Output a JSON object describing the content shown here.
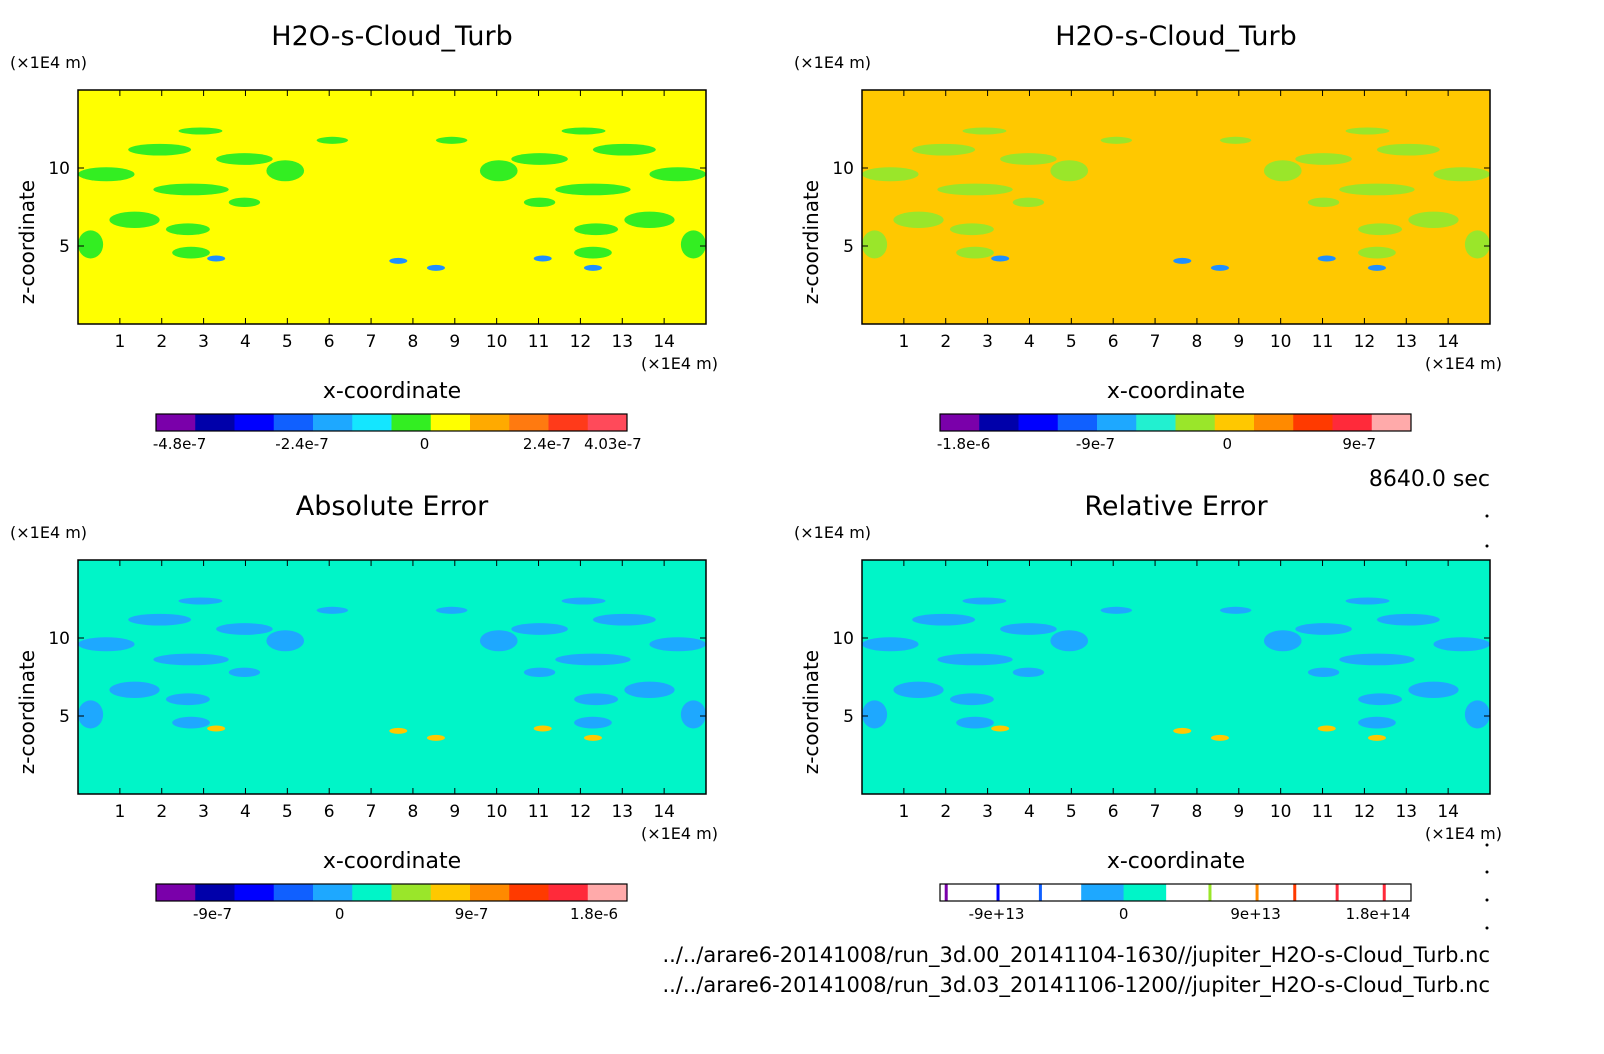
{
  "panels": [
    {
      "title": "H2O-s-Cloud_Turb",
      "bg": "#ffff00",
      "blob_color": "#33ee22",
      "spot_color": "#1f8fff",
      "unit_y": "(×1E4 m)",
      "unit_x": "(×1E4 m)",
      "xlabel": "x-coordinate",
      "ylabel": "z-coordinate",
      "x_ticks": [
        "1",
        "2",
        "3",
        "4",
        "5",
        "6",
        "7",
        "8",
        "9",
        "10",
        "11",
        "12",
        "13",
        "14"
      ],
      "y_ticks": [
        "5",
        "10"
      ],
      "colorbar": {
        "colors": [
          "#7a00aa",
          "#0000aa",
          "#0000ff",
          "#1060ff",
          "#1ea8ff",
          "#14e6ff",
          "#33ee22",
          "#ffff00",
          "#ffaa00",
          "#ff7a10",
          "#ff3a1a",
          "#ff4a5a"
        ],
        "labels": [
          "-4.8e-7",
          "-2.4e-7",
          "0",
          "2.4e-7",
          "4.03e-7"
        ],
        "style": "filled"
      }
    },
    {
      "title": "H2O-s-Cloud_Turb",
      "bg": "#ffc800",
      "blob_color": "#9ae62a",
      "spot_color": "#1f8fff",
      "unit_y": "(×1E4 m)",
      "unit_x": "(×1E4 m)",
      "xlabel": "x-coordinate",
      "ylabel": "z-coordinate",
      "x_ticks": [
        "1",
        "2",
        "3",
        "4",
        "5",
        "6",
        "7",
        "8",
        "9",
        "10",
        "11",
        "12",
        "13",
        "14"
      ],
      "y_ticks": [
        "5",
        "10"
      ],
      "colorbar": {
        "colors": [
          "#7a00aa",
          "#0000aa",
          "#0000ff",
          "#1060ff",
          "#1ea8ff",
          "#22f0d0",
          "#9ae62a",
          "#ffc800",
          "#ff8a00",
          "#ff3a00",
          "#ff2a3a",
          "#ffaaaa"
        ],
        "labels": [
          "-1.8e-6",
          "-9e-7",
          "0",
          "9e-7"
        ],
        "style": "filled"
      }
    },
    {
      "title": "Absolute Error",
      "bg": "#00f5c8",
      "blob_color": "#1ea8ff",
      "spot_color": "#ffc800",
      "unit_y": "(×1E4 m)",
      "unit_x": "(×1E4 m)",
      "xlabel": "x-coordinate",
      "ylabel": "z-coordinate",
      "x_ticks": [
        "1",
        "2",
        "3",
        "4",
        "5",
        "6",
        "7",
        "8",
        "9",
        "10",
        "11",
        "12",
        "13",
        "14"
      ],
      "y_ticks": [
        "5",
        "10"
      ],
      "colorbar": {
        "colors": [
          "#7a00aa",
          "#0000aa",
          "#0000ff",
          "#1060ff",
          "#1ea8ff",
          "#00f5c8",
          "#9ae62a",
          "#ffc800",
          "#ff8a00",
          "#ff3a00",
          "#ff2a3a",
          "#ffaaaa"
        ],
        "labels": [
          "-9e-7",
          "0",
          "9e-7",
          "1.8e-6"
        ],
        "style": "filled"
      }
    },
    {
      "title": "Relative Error",
      "bg": "#00f5c8",
      "blob_color": "#1ea8ff",
      "spot_color": "#ffc800",
      "unit_y": "(×1E4 m)",
      "unit_x": "(×1E4 m)",
      "xlabel": "x-coordinate",
      "ylabel": "z-coordinate",
      "x_ticks": [
        "1",
        "2",
        "3",
        "4",
        "5",
        "6",
        "7",
        "8",
        "9",
        "10",
        "11",
        "12",
        "13",
        "14"
      ],
      "y_ticks": [
        "5",
        "10"
      ],
      "colorbar": {
        "colors": [
          "#7a00aa",
          "#0000ff",
          "#1060ff",
          "#1ea8ff",
          "#00f5c8",
          "#9ae62a",
          "#ff8a00",
          "#ff3a00",
          "#ff2a3a",
          "#ff2a3a"
        ],
        "labels": [
          "-9e+13",
          "0",
          "9e+13",
          "1.8e+14"
        ],
        "style": "lines"
      }
    }
  ],
  "time_label": "8640.0 sec",
  "footer": {
    "line1": "../../arare6-20141008/run_3d.00_20141104-1630//jupiter_H2O-s-Cloud_Turb.nc",
    "line2": "../../arare6-20141008/run_3d.03_20141106-1200//jupiter_H2O-s-Cloud_Turb.nc"
  },
  "chart_data": [
    {
      "type": "heatmap",
      "title": "H2O-s-Cloud_Turb",
      "xlabel": "x-coordinate",
      "ylabel": "z-coordinate",
      "x_unit": "(×1E4 m)",
      "y_unit": "(×1E4 m)",
      "xlim": [
        0,
        15
      ],
      "ylim": [
        0,
        15
      ],
      "x_ticks": [
        1,
        2,
        3,
        4,
        5,
        6,
        7,
        8,
        9,
        10,
        11,
        12,
        13,
        14
      ],
      "y_ticks": [
        5,
        10
      ],
      "colorbar_labels": [
        "-4.8e-7",
        "-2.4e-7",
        "0",
        "2.4e-7",
        "4.03e-7"
      ]
    },
    {
      "type": "heatmap",
      "title": "H2O-s-Cloud_Turb",
      "xlabel": "x-coordinate",
      "ylabel": "z-coordinate",
      "x_unit": "(×1E4 m)",
      "y_unit": "(×1E4 m)",
      "xlim": [
        0,
        15
      ],
      "ylim": [
        0,
        15
      ],
      "x_ticks": [
        1,
        2,
        3,
        4,
        5,
        6,
        7,
        8,
        9,
        10,
        11,
        12,
        13,
        14
      ],
      "y_ticks": [
        5,
        10
      ],
      "colorbar_labels": [
        "-1.8e-6",
        "-9e-7",
        "0",
        "9e-7"
      ]
    },
    {
      "type": "heatmap",
      "title": "Absolute Error",
      "xlabel": "x-coordinate",
      "ylabel": "z-coordinate",
      "x_unit": "(×1E4 m)",
      "y_unit": "(×1E4 m)",
      "xlim": [
        0,
        15
      ],
      "ylim": [
        0,
        15
      ],
      "x_ticks": [
        1,
        2,
        3,
        4,
        5,
        6,
        7,
        8,
        9,
        10,
        11,
        12,
        13,
        14
      ],
      "y_ticks": [
        5,
        10
      ],
      "colorbar_labels": [
        "-9e-7",
        "0",
        "9e-7",
        "1.8e-6"
      ]
    },
    {
      "type": "heatmap",
      "title": "Relative Error",
      "xlabel": "x-coordinate",
      "ylabel": "z-coordinate",
      "x_unit": "(×1E4 m)",
      "y_unit": "(×1E4 m)",
      "xlim": [
        0,
        15
      ],
      "ylim": [
        0,
        15
      ],
      "x_ticks": [
        1,
        2,
        3,
        4,
        5,
        6,
        7,
        8,
        9,
        10,
        11,
        12,
        13,
        14
      ],
      "y_ticks": [
        5,
        10
      ],
      "colorbar_labels": [
        "-9e+13",
        "0",
        "9e+13",
        "1.8e+14"
      ]
    }
  ]
}
